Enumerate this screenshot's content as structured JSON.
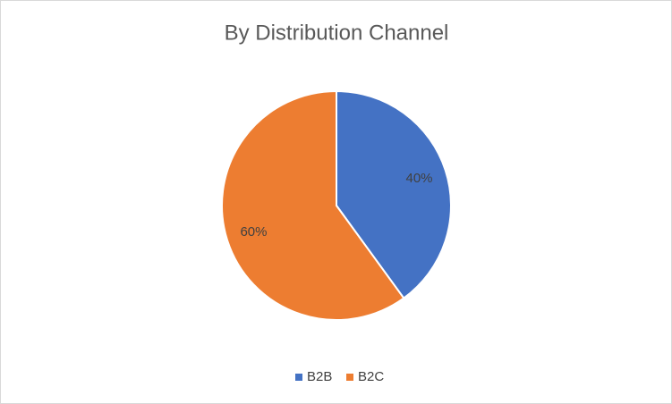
{
  "chart_data": {
    "type": "pie",
    "title": "By Distribution Channel",
    "categories": [
      "B2B",
      "B2C"
    ],
    "values": [
      40,
      60
    ],
    "value_labels": [
      "40%",
      "60%"
    ],
    "colors": [
      "#4472c4",
      "#ed7d31"
    ],
    "legend": "bottom"
  }
}
